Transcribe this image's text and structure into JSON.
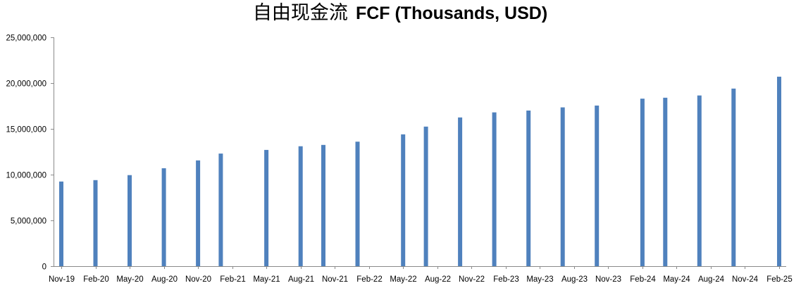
{
  "chart_data": {
    "type": "bar",
    "title_cjk": "自由现金流",
    "title_latin": "FCF (Thousands, USD)",
    "xlabel": "",
    "ylabel": "",
    "ylim": [
      0,
      25000000
    ],
    "y_ticks": [
      "0",
      "5,000,000",
      "10,000,000",
      "15,000,000",
      "20,000,000",
      "25,000,000"
    ],
    "y_tick_values": [
      0,
      5000000,
      10000000,
      15000000,
      20000000,
      25000000
    ],
    "x_ticks": [
      "Nov-19",
      "Feb-20",
      "May-20",
      "Aug-20",
      "Nov-20",
      "Feb-21",
      "May-21",
      "Aug-21",
      "Nov-21",
      "Feb-22",
      "May-22",
      "Aug-22",
      "Nov-22",
      "Feb-23",
      "May-23",
      "Aug-23",
      "Nov-23",
      "Feb-24",
      "May-24",
      "Aug-24",
      "Nov-24",
      "Feb-25"
    ],
    "grid": false,
    "legend": "none",
    "bar_color": "#4f81bd",
    "points": [
      {
        "date": "Nov-19",
        "value": 9250000
      },
      {
        "date": "Feb-20",
        "value": 9400000
      },
      {
        "date": "May-20",
        "value": 9950000
      },
      {
        "date": "Aug-20",
        "value": 10700000
      },
      {
        "date": "Nov-20",
        "value": 11550000
      },
      {
        "date": "Jan-21",
        "value": 12300000
      },
      {
        "date": "May-21",
        "value": 12700000
      },
      {
        "date": "Aug-21",
        "value": 13100000
      },
      {
        "date": "Oct-21",
        "value": 13250000
      },
      {
        "date": "Jan-22",
        "value": 13600000
      },
      {
        "date": "May-22",
        "value": 14400000
      },
      {
        "date": "Jul-22",
        "value": 15250000
      },
      {
        "date": "Oct-22",
        "value": 16250000
      },
      {
        "date": "Jan-23",
        "value": 16800000
      },
      {
        "date": "Apr-23",
        "value": 17000000
      },
      {
        "date": "Jul-23",
        "value": 17350000
      },
      {
        "date": "Oct-23",
        "value": 17550000
      },
      {
        "date": "Feb-24",
        "value": 18300000
      },
      {
        "date": "Apr-24",
        "value": 18400000
      },
      {
        "date": "Jul-24",
        "value": 18650000
      },
      {
        "date": "Oct-24",
        "value": 19400000
      },
      {
        "date": "Feb-25",
        "value": 20700000
      }
    ]
  }
}
